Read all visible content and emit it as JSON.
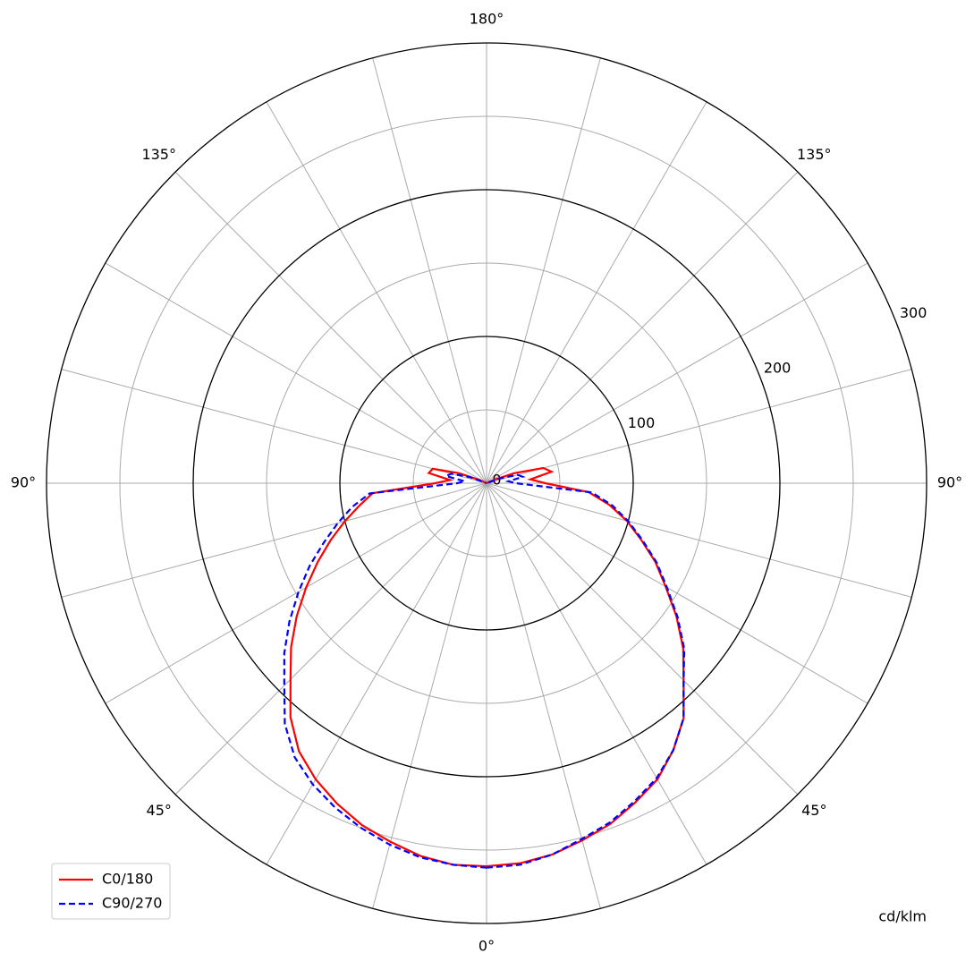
{
  "chart_data": {
    "type": "polar",
    "unit_label": "cd/klm",
    "angles": [
      0,
      5,
      10,
      15,
      20,
      25,
      30,
      35,
      40,
      45,
      50,
      55,
      60,
      65,
      70,
      75,
      80,
      85,
      90,
      95,
      100,
      105,
      110,
      115,
      120,
      125,
      130,
      135,
      140,
      145,
      150,
      155,
      160,
      165,
      170,
      175,
      180
    ],
    "series": [
      {
        "name": "C0/180",
        "color": "#ff0000",
        "dash": "solid",
        "values": [
          261,
          260,
          257,
          252,
          247,
          240,
          233,
          222,
          209,
          190,
          175,
          158,
          141,
          127,
          112,
          99,
          85,
          70,
          40,
          30,
          45,
          40,
          20,
          5,
          0,
          0,
          0,
          0,
          0,
          0,
          0,
          0,
          0,
          0,
          0,
          0,
          0
        ],
        "values_opposite": [
          261,
          261,
          258,
          253,
          248,
          241,
          233,
          223,
          208,
          189,
          174,
          158,
          142,
          127,
          113,
          100,
          88,
          78,
          35,
          25,
          40,
          38,
          20,
          5,
          0,
          0,
          0,
          0,
          0,
          0,
          0,
          0,
          0,
          0,
          0,
          0,
          0
        ]
      },
      {
        "name": "C90/270",
        "color": "#0000ff",
        "dash": "dashed",
        "values": [
          262,
          261,
          257,
          251,
          246,
          239,
          232,
          222,
          209,
          190,
          176,
          159,
          142,
          128,
          113,
          100,
          87,
          72,
          20,
          15,
          25,
          22,
          10,
          0,
          0,
          0,
          0,
          0,
          0,
          0,
          0,
          0,
          0,
          0,
          0,
          0,
          0
        ],
        "values_opposite": [
          262,
          261,
          259,
          255,
          250,
          244,
          237,
          228,
          214,
          195,
          180,
          164,
          148,
          133,
          118,
          105,
          93,
          80,
          20,
          15,
          28,
          25,
          12,
          0,
          0,
          0,
          0,
          0,
          0,
          0,
          0,
          0,
          0,
          0,
          0,
          0,
          0
        ]
      }
    ],
    "rlim": [
      0,
      300
    ],
    "rticks": [
      0,
      100,
      200,
      300
    ],
    "rticks_minor": [
      50,
      150,
      250
    ],
    "angle_gridlines": [
      0,
      15,
      30,
      45,
      60,
      75,
      90,
      105,
      120,
      135,
      150,
      165,
      180
    ],
    "angle_labels": [
      {
        "value": 0,
        "label": "0°"
      },
      {
        "value": 45,
        "label": "45°"
      },
      {
        "value": 90,
        "label": "90°"
      },
      {
        "value": 135,
        "label": "135°"
      },
      {
        "value": 180,
        "label": "180°"
      }
    ],
    "legend": "lower-left"
  }
}
